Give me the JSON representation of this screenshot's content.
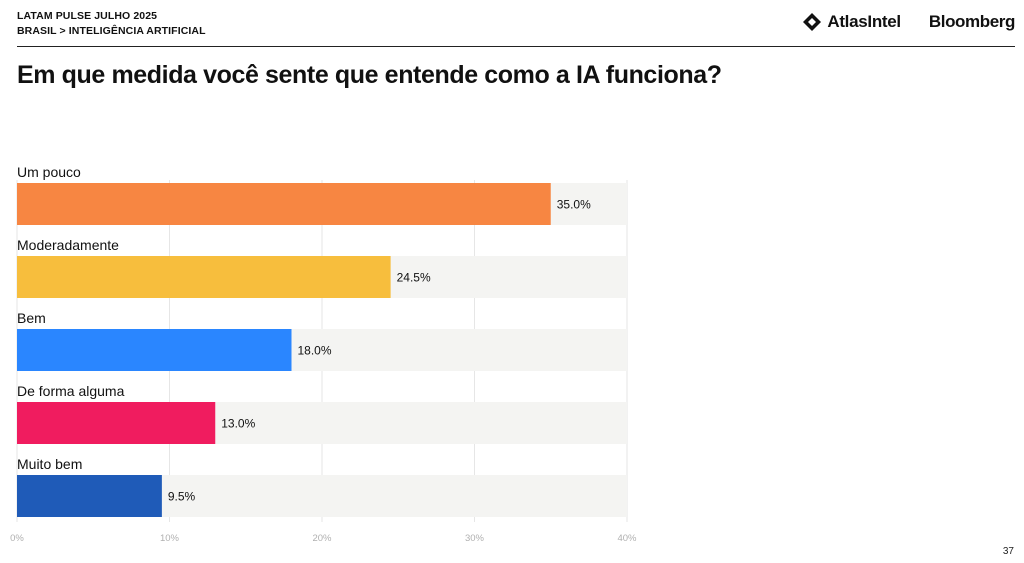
{
  "header": {
    "survey_name": "LATAM PULSE JULHO 2025",
    "breadcrumb": "BRASIL > INTELIGÊNCIA ARTIFICIAL",
    "logo_atlas": "AtlasIntel",
    "logo_bloomberg": "Bloomberg"
  },
  "question": "Em que medida você sente que entende como a IA funciona?",
  "chart_data": {
    "type": "bar",
    "orientation": "horizontal",
    "categories": [
      "Um pouco",
      "Moderadamente",
      "Bem",
      "De forma alguma",
      "Muito bem"
    ],
    "values": [
      35.0,
      24.5,
      18.0,
      13.0,
      9.5
    ],
    "value_labels": [
      "35.0%",
      "24.5%",
      "18.0%",
      "13.0%",
      "9.5%"
    ],
    "colors": [
      "#F78642",
      "#F7BE3D",
      "#2A86FF",
      "#F01C5F",
      "#1F5BB8"
    ],
    "track_color": "#F4F4F2",
    "xlim": [
      0,
      40
    ],
    "x_ticks": [
      0,
      10,
      20,
      30,
      40
    ],
    "x_tick_labels": [
      "0%",
      "10%",
      "20%",
      "30%",
      "40%"
    ],
    "grid": true,
    "legend": "none"
  },
  "footer": {
    "page_number": "37"
  }
}
